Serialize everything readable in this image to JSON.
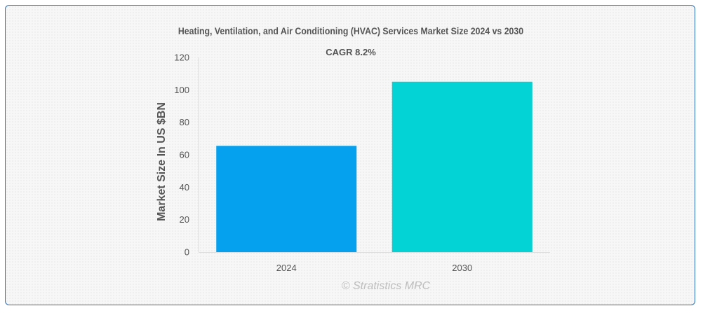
{
  "chart_data": {
    "type": "bar",
    "title": "Heating, Ventilation, and Air Conditioning (HVAC) Services Market Size 2024 vs 2030",
    "subtitle": "CAGR 8.2%",
    "categories": [
      "2024",
      "2030"
    ],
    "values": [
      65.5,
      105
    ],
    "colors": [
      "#05a0ee",
      "#03d3d4"
    ],
    "xlabel": "",
    "ylabel": "Market Size In US $BN",
    "ylim": [
      0,
      120
    ],
    "yticks": [
      0,
      20,
      40,
      60,
      80,
      100,
      120
    ],
    "grid": false,
    "legend": "none"
  },
  "watermark": "© Stratistics MRC"
}
